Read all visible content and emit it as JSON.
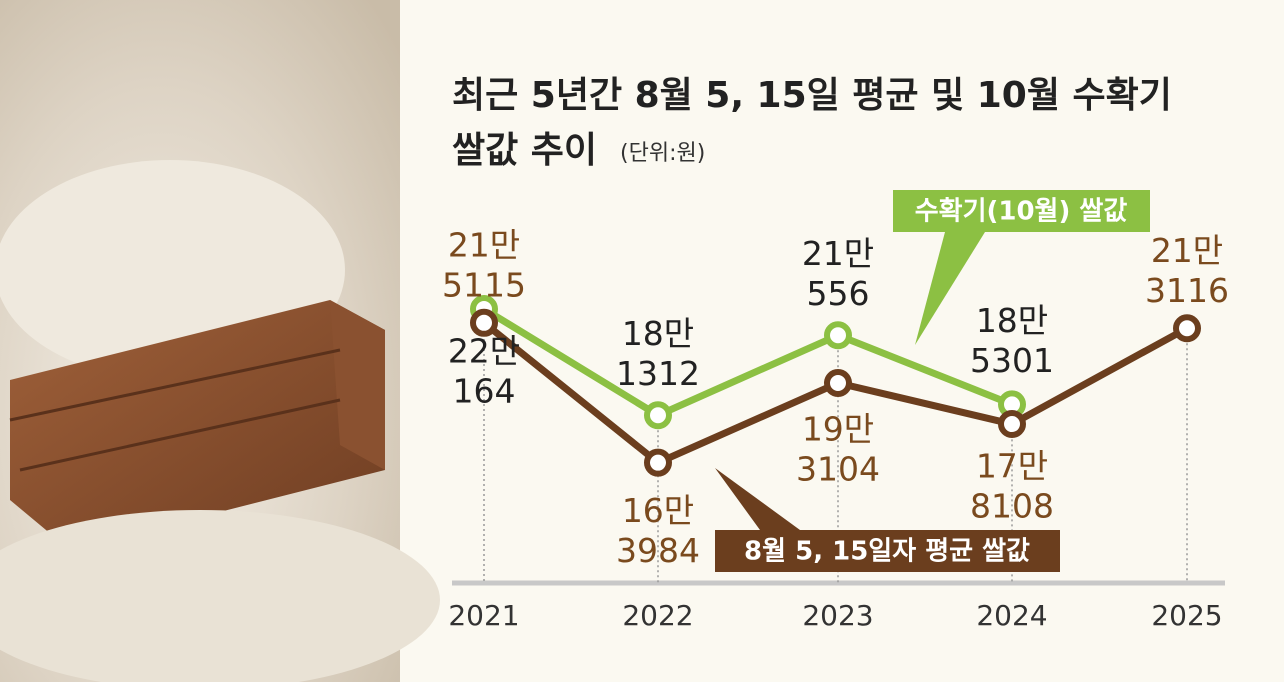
{
  "chart_data": {
    "type": "line",
    "title": [
      "최근 5년간 8월 5, 15일 평균 및 10월 수확기",
      "쌀값 추이"
    ],
    "unit": "(단위:원)",
    "categories": [
      "2021",
      "2022",
      "2023",
      "2024",
      "2025"
    ],
    "ylim": [
      120000,
      260000
    ],
    "series": [
      {
        "name": "8월 5, 15일자 평균 쌀값",
        "color": "#6b3e1e",
        "values": [
          215115,
          163984,
          193104,
          178108,
          213116
        ],
        "value_labels": [
          [
            "21만",
            "5115"
          ],
          [
            "16만",
            "3984"
          ],
          [
            "19만",
            "3104"
          ],
          [
            "17만",
            "8108"
          ],
          [
            "21만",
            "3116"
          ]
        ]
      },
      {
        "name": "수확기(10월) 쌀값",
        "color": "#8cc043",
        "values": [
          220164,
          181312,
          210556,
          185301,
          null
        ],
        "value_labels": [
          [
            "22만",
            "164"
          ],
          [
            "18만",
            "1312"
          ],
          [
            "21만",
            "556"
          ],
          [
            "18만",
            "5301"
          ],
          null
        ]
      }
    ]
  }
}
